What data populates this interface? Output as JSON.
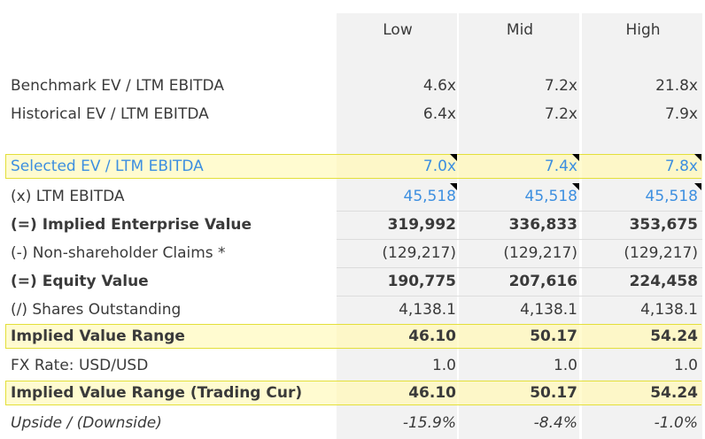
{
  "header": {
    "low": "Low",
    "mid": "Mid",
    "high": "High"
  },
  "rows": [
    {
      "label": "Benchmark EV / LTM EBITDA",
      "low": "4.6x",
      "mid": "7.2x",
      "high": "21.8x"
    },
    {
      "label": "Historical EV / LTM EBITDA",
      "low": "6.4x",
      "mid": "7.2x",
      "high": "7.9x"
    },
    {
      "label": "Selected EV / LTM EBITDA",
      "low": "7.0x",
      "mid": "7.4x",
      "high": "7.8x"
    },
    {
      "label": "(x) LTM EBITDA",
      "low": "45,518",
      "mid": "45,518",
      "high": "45,518"
    },
    {
      "label": "(=) Implied Enterprise Value",
      "low": "319,992",
      "mid": "336,833",
      "high": "353,675"
    },
    {
      "label": "(-) Non-shareholder Claims *",
      "low": "(129,217)",
      "mid": "(129,217)",
      "high": "(129,217)"
    },
    {
      "label": "(=) Equity Value",
      "low": "190,775",
      "mid": "207,616",
      "high": "224,458"
    },
    {
      "label": "(/) Shares Outstanding",
      "low": "4,138.1",
      "mid": "4,138.1",
      "high": "4,138.1"
    },
    {
      "label": "Implied Value Range",
      "low": "46.10",
      "mid": "50.17",
      "high": "54.24"
    },
    {
      "label": "FX Rate: USD/USD",
      "low": "1.0",
      "mid": "1.0",
      "high": "1.0"
    },
    {
      "label": "Implied Value Range (Trading Cur)",
      "low": "46.10",
      "mid": "50.17",
      "high": "54.24"
    },
    {
      "label": "Upside / (Downside)",
      "low": "-15.9%",
      "mid": "-8.4%",
      "high": "-1.0%"
    }
  ],
  "colors": {
    "input_blue": "#3d8fe0",
    "highlight_border": "#e3df3a",
    "highlight_fill": "#fffbd0",
    "column_fill": "#f2f2f2"
  }
}
